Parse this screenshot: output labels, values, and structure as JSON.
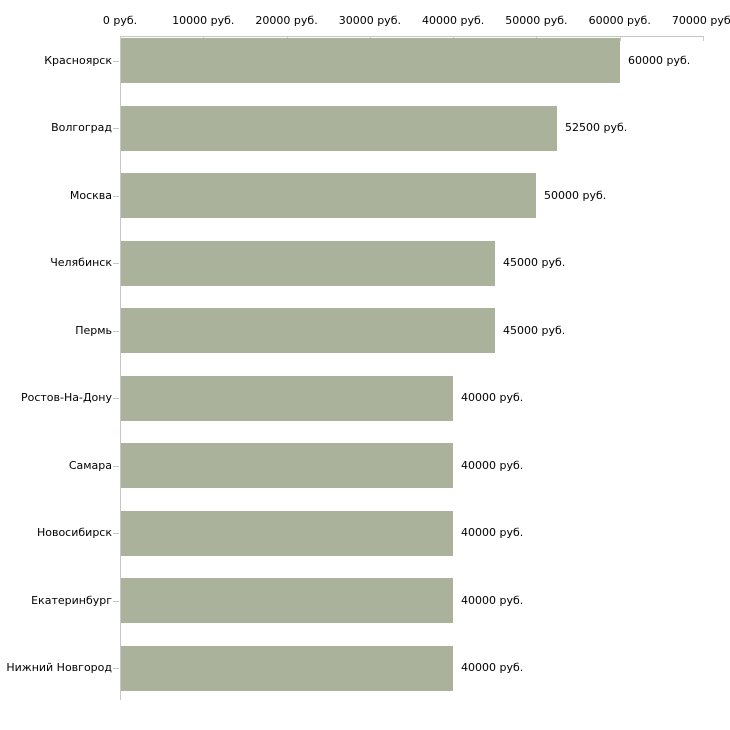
{
  "chart_data": {
    "type": "bar",
    "orientation": "horizontal",
    "title": "",
    "unit": "руб.",
    "categories": [
      "Красноярск",
      "Волгоград",
      "Москва",
      "Челябинск",
      "Пермь",
      "Ростов-На-Дону",
      "Самара",
      "Новосибирск",
      "Екатеринбург",
      "Нижний Новгород"
    ],
    "values": [
      60000,
      52500,
      50000,
      45000,
      45000,
      40000,
      40000,
      40000,
      40000,
      40000
    ],
    "bar_labels": [
      "60000 руб.",
      "52500 руб.",
      "50000 руб.",
      "45000 руб.",
      "45000 руб.",
      "40000 руб.",
      "40000 руб.",
      "40000 руб.",
      "40000 руб.",
      "40000 руб."
    ],
    "x_axis": {
      "position": "top",
      "xlim": [
        0,
        70000
      ],
      "ticks": [
        0,
        10000,
        20000,
        30000,
        40000,
        50000,
        60000,
        70000
      ],
      "tick_labels": [
        "0 руб.",
        "10000 руб.",
        "20000 руб.",
        "30000 руб.",
        "40000 руб.",
        "50000 руб.",
        "60000 руб.",
        "70000 руб."
      ]
    },
    "grid": false,
    "legend": false,
    "colors": {
      "bar": "#abb29b",
      "axis": "#c6c6c6",
      "tick": "#cdd0ba",
      "text": "#000000",
      "background": "#ffffff"
    }
  }
}
